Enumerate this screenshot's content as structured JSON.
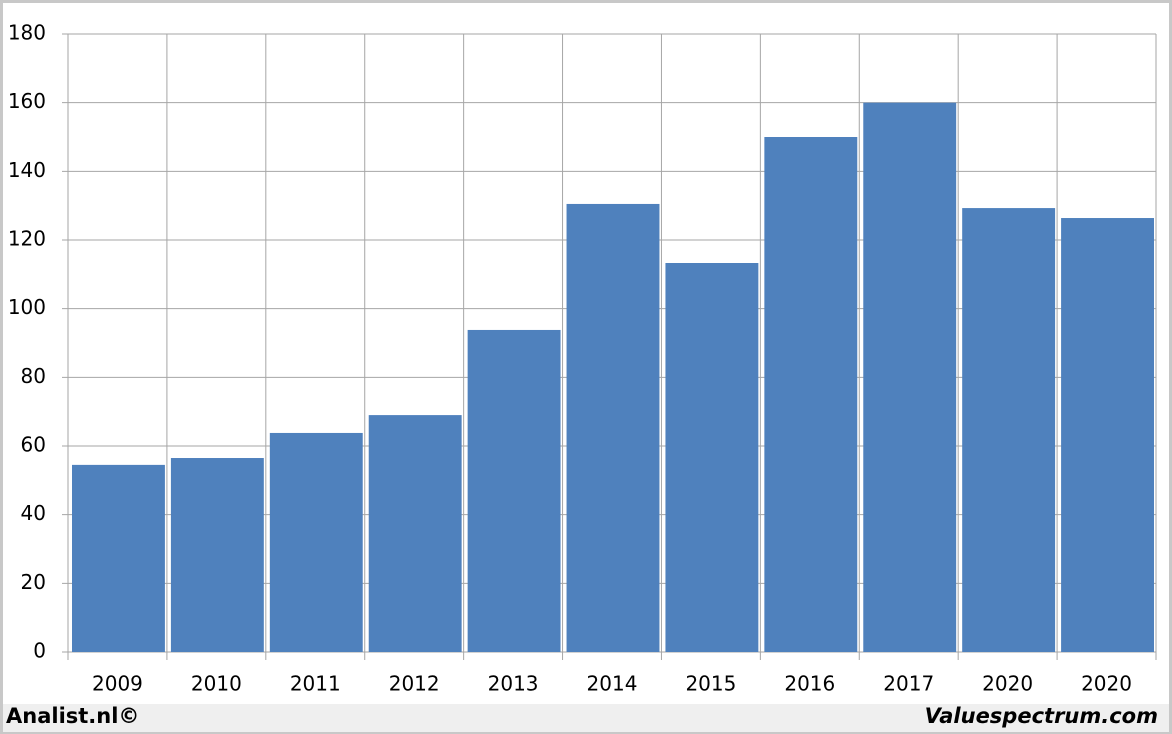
{
  "chart_data": {
    "type": "bar",
    "categories": [
      "2009",
      "2010",
      "2011",
      "2012",
      "2013",
      "2014",
      "2015",
      "2016",
      "2017",
      "2020",
      "2020"
    ],
    "values": [
      54.5,
      56.5,
      63.8,
      69,
      93.8,
      130.5,
      113.3,
      150,
      160,
      129.3,
      126.4
    ],
    "color": "#4f81bd",
    "ylim": [
      0,
      180
    ],
    "yticks": [
      0,
      20,
      40,
      60,
      80,
      100,
      120,
      140,
      160,
      180
    ],
    "grid": true,
    "footer_left": "Analist.nl©",
    "footer_right": "Valuespectrum.com"
  }
}
